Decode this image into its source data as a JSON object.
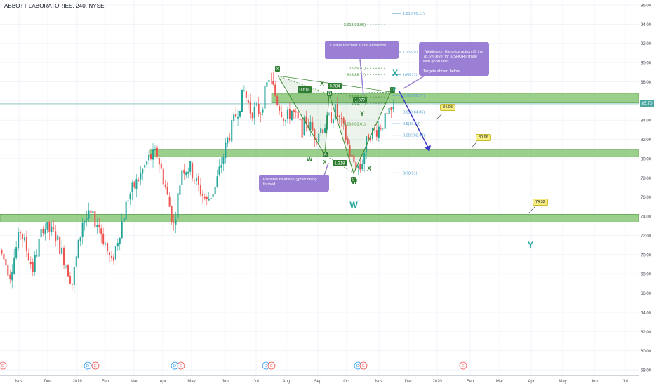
{
  "header": {
    "title": "ABBOTT LABORATORIES, 240, NYSE"
  },
  "current_price": "85.70",
  "notes": {
    "y_wave": "Y wave reached 100% extension",
    "waiting": "Waiting on the price action @ the 78.6% level for a SHORT trade with good ratio.\n\nTargets shown below.",
    "cypher": "Possible Bearish Cypher being formed"
  },
  "targets": [
    "84.08",
    "80.96",
    "74.32"
  ],
  "colors": {
    "zone": "#7fc26c",
    "up": "#26a69a",
    "down": "#ef5350",
    "pattern": "#3c8a2e",
    "fib": "#5aa0d0",
    "arrow": "#3a36c4",
    "note": "#9b7fd4"
  },
  "chart_data": {
    "type": "candlestick",
    "ylim": [
      57,
      97
    ],
    "y_ticks": [
      "96.00",
      "94.00",
      "92.00",
      "90.00",
      "88.00",
      "86.00",
      "84.00",
      "82.00",
      "80.00",
      "78.00",
      "76.00",
      "74.00",
      "72.00",
      "70.00",
      "68.00",
      "66.00",
      "64.00",
      "62.00",
      "60.00",
      "58.00"
    ],
    "x_ticks": [
      "Nov",
      "Dec",
      "2019",
      "Feb",
      "Mar",
      "Apr",
      "May",
      "Jun",
      "Jul",
      "Aug",
      "Sep",
      "Oct",
      "Nov",
      "Dec",
      "2020",
      "Feb",
      "Mar",
      "Apr",
      "May",
      "Jun",
      "Jul"
    ],
    "price_path": [
      [
        0,
        70.5
      ],
      [
        5,
        68
      ],
      [
        10,
        72.5
      ],
      [
        16,
        68.5
      ],
      [
        21,
        73
      ],
      [
        27,
        72
      ],
      [
        32,
        69
      ],
      [
        35,
        67
      ],
      [
        40,
        73.5
      ],
      [
        44,
        74
      ],
      [
        48,
        73
      ],
      [
        54,
        69
      ],
      [
        58,
        72.5
      ],
      [
        62,
        76
      ],
      [
        66,
        77.5
      ],
      [
        72,
        80
      ],
      [
        76,
        80.5
      ],
      [
        80,
        77
      ],
      [
        84,
        73
      ],
      [
        88,
        79
      ],
      [
        92,
        79
      ],
      [
        96,
        77
      ],
      [
        100,
        75.5
      ],
      [
        104,
        77
      ],
      [
        110,
        82
      ],
      [
        114,
        84.5
      ],
      [
        118,
        87
      ],
      [
        121,
        85
      ],
      [
        126,
        85
      ],
      [
        130,
        88.5
      ],
      [
        134,
        86
      ],
      [
        138,
        84
      ],
      [
        141,
        85
      ],
      [
        146,
        83
      ],
      [
        148,
        84
      ],
      [
        152,
        82.5
      ],
      [
        157,
        83.5
      ],
      [
        162,
        85
      ],
      [
        166,
        83
      ],
      [
        170,
        79.8
      ],
      [
        174,
        79
      ],
      [
        178,
        82.5
      ],
      [
        182,
        83
      ],
      [
        186,
        84
      ],
      [
        190,
        85
      ]
    ],
    "zones": [
      [
        85.8,
        86.8
      ],
      [
        80.2,
        80.9
      ],
      [
        73.4,
        74.2
      ]
    ],
    "fib_retracement": [
      {
        "text": "1.618(95.11)",
        "price": 95.11
      },
      {
        "text": "1.236(91.1)",
        "price": 91.1
      },
      {
        "text": "1(88.72)",
        "price": 88.72
      },
      {
        "text": "0.786(86.57)",
        "price": 86.57
      },
      {
        "text": "0.618(84.85)",
        "price": 84.85
      },
      {
        "text": "0.5(83.64)",
        "price": 83.64
      },
      {
        "text": "0.382(82.43)",
        "price": 82.43
      },
      {
        "text": "0(78.51)",
        "price": 78.51
      }
    ],
    "fib_extension": [
      {
        "text": "2.618(93.95)",
        "price": 93.95
      },
      {
        "text": "1.75(89.41)",
        "price": 89.41
      },
      {
        "text": "1.618(88.72)",
        "price": 88.72
      },
      {
        "text": "1.13(86.41)",
        "price": 86.41
      },
      {
        "text": "1(85.77)",
        "price": 85.77
      },
      {
        "text": "0.618(83.61)",
        "price": 83.61
      }
    ],
    "pattern_points": [
      {
        "label": "X",
        "price": 88.2
      },
      {
        "label": "A",
        "price": 80.5
      },
      {
        "label": "B",
        "price": 86.0
      },
      {
        "label": "C",
        "price": 78.0
      },
      {
        "label": "D",
        "price": 86.6
      }
    ],
    "pattern_ratios": [
      "0.618",
      "0.784",
      "1.077",
      "1.318"
    ],
    "wave_labels": [
      "W",
      "X",
      "Y",
      "X",
      "W",
      "X",
      "Y",
      "W",
      "X",
      "Y"
    ],
    "events": [
      "E",
      "D",
      "E",
      "D",
      "E",
      "D",
      "E",
      "D",
      "E",
      "E"
    ]
  }
}
